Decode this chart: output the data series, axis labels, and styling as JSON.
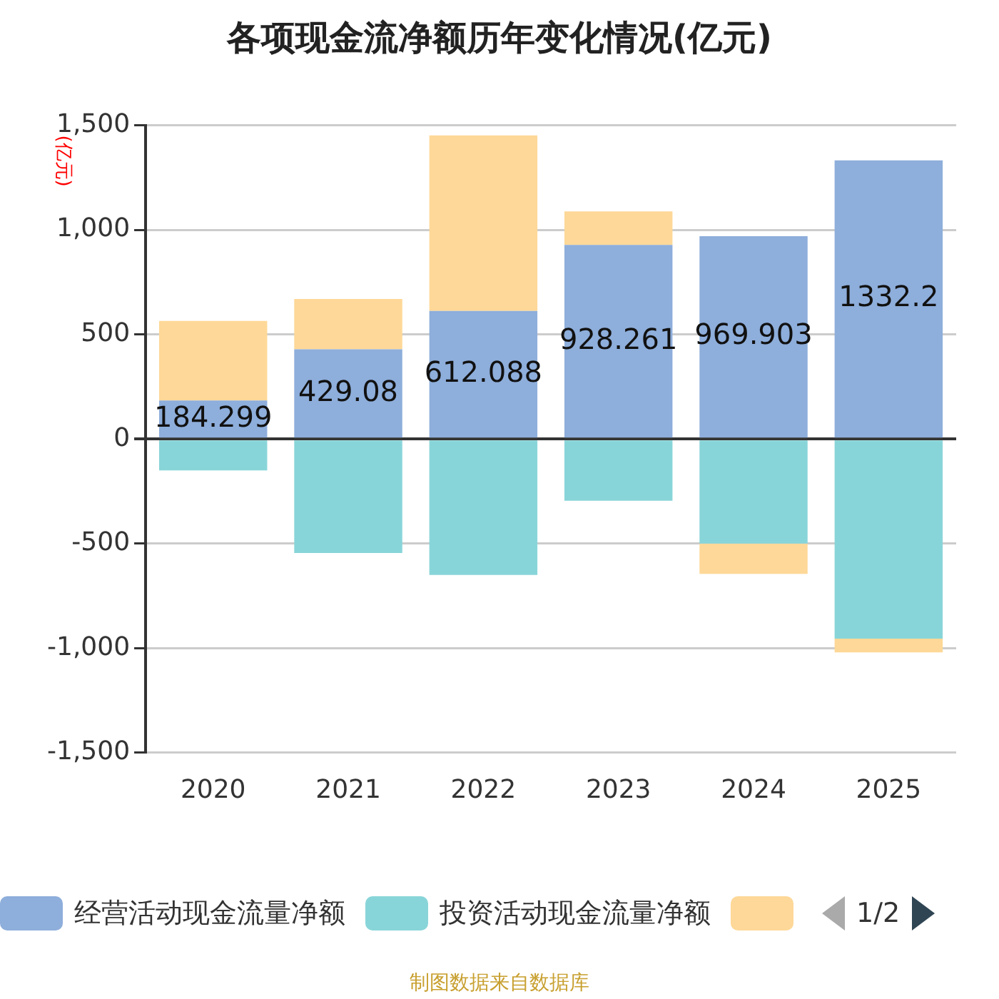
{
  "chart_data": {
    "type": "bar",
    "title": "各项现金流净额历年变化情况(亿元)",
    "ylabel": "(亿元)",
    "stacked": true,
    "grid": "y",
    "legend": "bottom",
    "categories": [
      "2020",
      "2021",
      "2022",
      "2023",
      "2024",
      "2025"
    ],
    "series": [
      {
        "name": "经营活动现金流量净额",
        "color": "#8eaedb",
        "values": [
          184.299,
          429.08,
          612.088,
          928.261,
          969.903,
          1332.2
        ],
        "value_labels": [
          "184.299",
          "429.08",
          "612.088",
          "928.261",
          "969.903",
          "1332.2"
        ]
      },
      {
        "name": "投资活动现金流量净额",
        "color": "#88d5d9",
        "values": [
          -150,
          -545,
          -650,
          -295,
          -500,
          -955
        ]
      },
      {
        "color": "#fed898",
        "values": [
          380,
          240,
          840,
          160,
          -145,
          -65
        ]
      }
    ],
    "ylim": [
      -1500,
      1500
    ],
    "yticks": [
      {
        "value": -1500,
        "label": "-1,500"
      },
      {
        "value": -1000,
        "label": "-1,000"
      },
      -500,
      0,
      500,
      {
        "value": 1000,
        "label": "1,000"
      },
      {
        "value": 1500,
        "label": "1,500"
      }
    ],
    "annotations": [
      "1/2",
      "制图数据来自数据库"
    ]
  }
}
